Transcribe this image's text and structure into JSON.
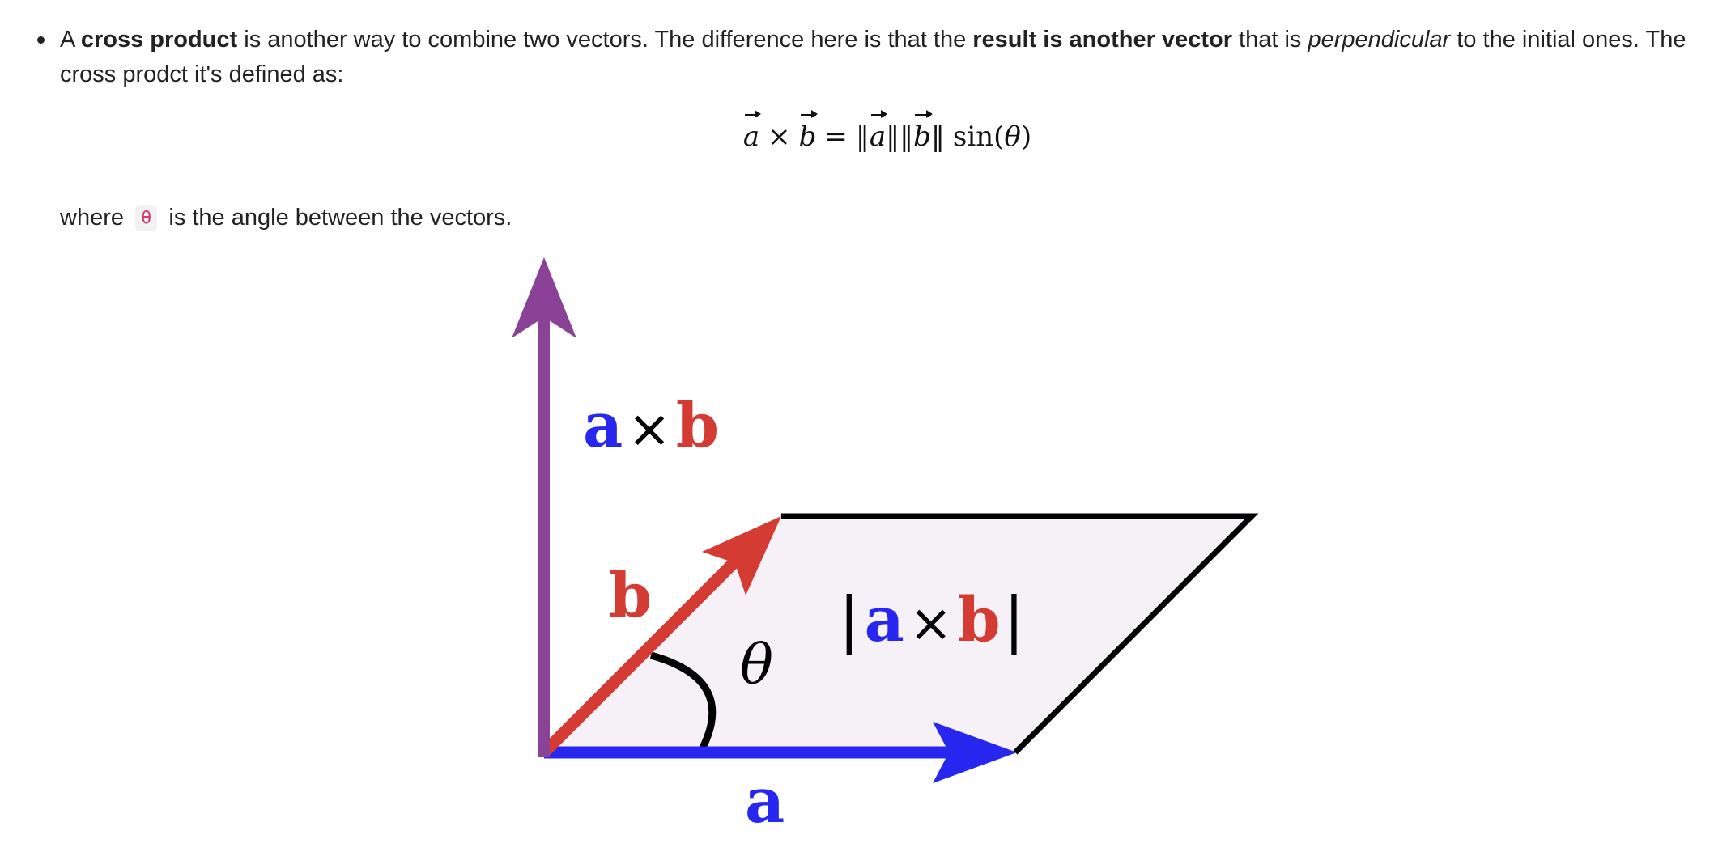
{
  "bullet": {
    "t1": "A ",
    "t2": "cross product",
    "t3": " is another way to combine two vectors. The difference here is that the ",
    "t4": "result is another vector",
    "t5": " that is ",
    "t6": "perpendicular",
    "t7": " to the initial ones. The cross prodct it's defined as:"
  },
  "formula": {
    "a": "a",
    "times": "×",
    "b": "b",
    "equals": "=",
    "norm_open_a": "‖",
    "norm_close_a": "‖",
    "norm_open_b": "‖",
    "norm_close_b": "‖",
    "sin": "sin",
    "paren_open": "(",
    "theta": "θ",
    "paren_close": ")"
  },
  "where": {
    "before": "where",
    "code": "θ",
    "after": "is the angle between the vectors."
  },
  "figure": {
    "axb_a": "a",
    "axb_times": "×",
    "axb_b": "b",
    "b_label": "b",
    "theta_label": "θ",
    "mag_bar_left": "|",
    "mag_a": "a",
    "mag_times": "×",
    "mag_b": "b",
    "mag_bar_right": "|",
    "a_label": "a",
    "colors": {
      "vector_a": "#2727f0",
      "vector_b": "#d43b33",
      "cross_product": "#8a4297",
      "parallelogram_fill": "#f6f1f7",
      "outline": "#000000"
    }
  }
}
